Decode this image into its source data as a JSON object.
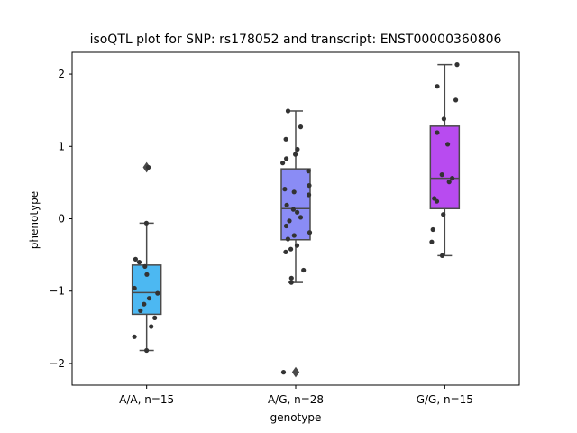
{
  "chart_data": {
    "type": "box",
    "title": "isoQTL plot for SNP: rs178052 and transcript: ENST00000360806",
    "xlabel": "genotype",
    "ylabel": "phenotype",
    "ylim": [
      -2.3,
      2.3
    ],
    "yticks": [
      -2,
      -1,
      0,
      1,
      2
    ],
    "yticklabels": [
      "−2",
      "−1",
      "0",
      "1",
      "2"
    ],
    "categories": [
      "A/A, n=15",
      "A/G, n=28",
      "G/G, n=15"
    ],
    "colors": [
      "#4cb8f2",
      "#8a8cf5",
      "#b84bf0"
    ],
    "boxes": [
      {
        "q1": -1.32,
        "median": -1.02,
        "q3": -0.64,
        "whisker_low": -1.82,
        "whisker_high": -0.06,
        "fliers": [
          0.71
        ]
      },
      {
        "q1": -0.29,
        "median": 0.14,
        "q3": 0.69,
        "whisker_low": -0.88,
        "whisker_high": 1.49,
        "fliers": [
          -2.12
        ]
      },
      {
        "q1": 0.14,
        "median": 0.56,
        "q3": 1.28,
        "whisker_low": -0.51,
        "whisker_high": 2.13,
        "fliers": []
      }
    ],
    "points": [
      [
        -0.06,
        0.71,
        -0.56,
        -0.6,
        -0.66,
        -0.77,
        -0.96,
        -1.03,
        -1.1,
        -1.18,
        -1.27,
        -1.37,
        -1.49,
        -1.63,
        -1.82
      ],
      [
        1.49,
        1.27,
        1.1,
        0.96,
        0.89,
        0.83,
        0.77,
        0.66,
        0.46,
        0.41,
        0.37,
        0.33,
        0.19,
        0.13,
        0.09,
        0.02,
        -0.03,
        -0.1,
        -0.19,
        -0.23,
        -0.28,
        -0.37,
        -0.42,
        -0.46,
        -0.71,
        -0.82,
        -0.88,
        -2.12
      ],
      [
        2.13,
        1.83,
        1.64,
        1.38,
        1.19,
        1.03,
        0.61,
        0.56,
        0.51,
        0.28,
        0.24,
        0.06,
        -0.15,
        -0.32,
        -0.51
      ]
    ]
  }
}
